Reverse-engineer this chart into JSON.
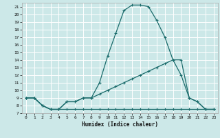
{
  "xlabel": "Humidex (Indice chaleur)",
  "xlim": [
    -0.5,
    23.5
  ],
  "ylim": [
    7,
    21.5
  ],
  "xticks": [
    0,
    1,
    2,
    3,
    4,
    5,
    6,
    7,
    8,
    9,
    10,
    11,
    12,
    13,
    14,
    15,
    16,
    17,
    18,
    19,
    20,
    21,
    22,
    23
  ],
  "yticks": [
    7,
    8,
    9,
    10,
    11,
    12,
    13,
    14,
    15,
    16,
    17,
    18,
    19,
    20,
    21
  ],
  "background_color": "#cce8e8",
  "line_color": "#1a6b6b",
  "grid_color": "#ffffff",
  "line1_x": [
    0,
    1,
    2,
    3,
    4,
    5,
    6,
    7,
    8,
    9,
    10,
    11,
    12,
    13,
    14,
    15,
    16,
    17,
    18,
    19,
    20,
    21,
    22,
    23
  ],
  "line1_y": [
    9,
    9,
    8,
    7.5,
    7.5,
    8.5,
    8.5,
    9,
    9,
    11,
    14.5,
    17.5,
    20.5,
    21.2,
    21.2,
    21.0,
    19.2,
    17,
    14,
    14,
    9,
    8.5,
    7.5,
    7.5
  ],
  "line2_x": [
    0,
    1,
    2,
    3,
    4,
    5,
    6,
    7,
    8,
    9,
    10,
    11,
    12,
    13,
    14,
    15,
    16,
    17,
    18,
    19,
    20,
    21,
    22,
    23
  ],
  "line2_y": [
    9,
    9,
    8,
    7.5,
    7.5,
    7.5,
    7.5,
    7.5,
    7.5,
    7.5,
    7.5,
    7.5,
    7.5,
    7.5,
    7.5,
    7.5,
    7.5,
    7.5,
    7.5,
    7.5,
    7.5,
    7.5,
    7.5,
    7.5
  ],
  "line3_x": [
    0,
    1,
    2,
    3,
    4,
    5,
    6,
    7,
    8,
    9,
    10,
    11,
    12,
    13,
    14,
    15,
    16,
    17,
    18,
    19,
    20,
    21,
    22,
    23
  ],
  "line3_y": [
    9,
    9,
    8,
    7.5,
    7.5,
    8.5,
    8.5,
    9,
    9,
    9.5,
    10,
    10.5,
    11,
    11.5,
    12,
    12.5,
    13,
    13.5,
    14,
    12,
    9,
    8.5,
    7.5,
    7.5
  ]
}
